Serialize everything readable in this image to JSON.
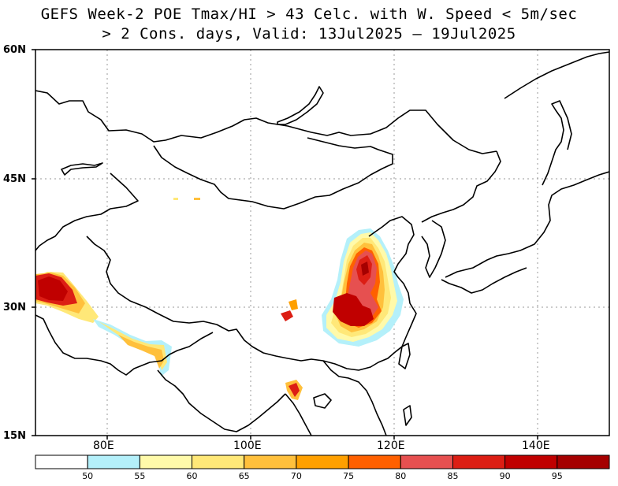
{
  "title": {
    "line1": "GEFS Week-2 POE Tmax/HI > 43 Celc. with W. Speed < 5m/sec",
    "line2": "> 2 Cons. days, Valid: 13Jul2025 – 19Jul2025"
  },
  "axes": {
    "lat_labels": [
      "60N",
      "45N",
      "30N",
      "15N"
    ],
    "lon_labels": [
      "80E",
      "100E",
      "120E",
      "140E"
    ],
    "lon_range": [
      70,
      150
    ],
    "lat_range": [
      15,
      60
    ]
  },
  "colorbar": {
    "thresholds": [
      "50",
      "55",
      "60",
      "65",
      "70",
      "75",
      "80",
      "85",
      "90",
      "95"
    ],
    "colors": [
      "#ffffff",
      "#b4f0fa",
      "#fffaaa",
      "#ffe878",
      "#ffc03c",
      "#ffa000",
      "#ff6000",
      "#e65050",
      "#dc1e14",
      "#c00000",
      "#a50000"
    ]
  },
  "map": {
    "gridlines": true,
    "land_fill": "#ffffff",
    "coastline_color": "#000000"
  }
}
